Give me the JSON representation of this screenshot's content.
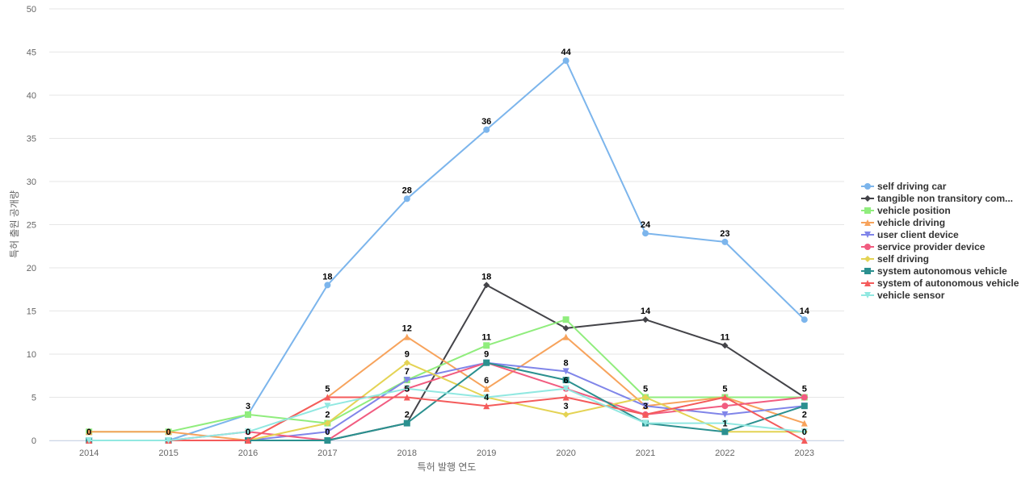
{
  "chart_data": {
    "type": "line",
    "title": "",
    "xlabel": "특허 발행 연도",
    "ylabel": "특허 출원 공개량",
    "ylim": [
      0,
      50
    ],
    "y_ticks": [
      0,
      5,
      10,
      15,
      20,
      25,
      30,
      35,
      40,
      45,
      50
    ],
    "grid": true,
    "legend_position": "right",
    "categories": [
      "2014",
      "2015",
      "2016",
      "2017",
      "2018",
      "2019",
      "2020",
      "2021",
      "2022",
      "2023"
    ],
    "series": [
      {
        "name": "self driving car",
        "color": "#7cb5ec",
        "marker": "circle",
        "values": [
          0,
          0,
          3,
          18,
          28,
          36,
          44,
          24,
          23,
          14
        ],
        "labels": [
          false,
          false,
          false,
          true,
          true,
          true,
          true,
          true,
          true,
          true
        ]
      },
      {
        "name": "tangible non transitory com...",
        "color": "#434348",
        "marker": "diamond",
        "values": [
          0,
          0,
          0,
          0,
          2,
          18,
          13,
          14,
          11,
          5
        ],
        "labels": [
          false,
          false,
          false,
          false,
          false,
          true,
          false,
          true,
          true,
          true
        ]
      },
      {
        "name": "vehicle position",
        "color": "#90ed7d",
        "marker": "square",
        "values": [
          1,
          1,
          3,
          2,
          7,
          11,
          14,
          5,
          5,
          5
        ],
        "labels": [
          false,
          false,
          true,
          false,
          false,
          true,
          false,
          true,
          true,
          false
        ]
      },
      {
        "name": "vehicle driving",
        "color": "#f7a35c",
        "marker": "triangle",
        "values": [
          1,
          1,
          0,
          5,
          12,
          6,
          12,
          4,
          5,
          2
        ],
        "labels": [
          false,
          false,
          false,
          true,
          true,
          true,
          false,
          false,
          false,
          true
        ]
      },
      {
        "name": "user client device",
        "color": "#8085e9",
        "marker": "triangle-down",
        "values": [
          0,
          0,
          0,
          1,
          7,
          9,
          8,
          4,
          3,
          4
        ],
        "labels": [
          false,
          false,
          false,
          false,
          true,
          true,
          true,
          false,
          false,
          false
        ]
      },
      {
        "name": "service provider device",
        "color": "#f15c80",
        "marker": "circle",
        "values": [
          0,
          0,
          1,
          0,
          6,
          9,
          6,
          3,
          4,
          5
        ],
        "labels": [
          false,
          false,
          false,
          false,
          false,
          false,
          true,
          false,
          false,
          false
        ]
      },
      {
        "name": "self driving",
        "color": "#e4d354",
        "marker": "diamond",
        "values": [
          0,
          0,
          0,
          2,
          9,
          5,
          3,
          5,
          1,
          1
        ],
        "labels": [
          true,
          true,
          false,
          true,
          true,
          false,
          true,
          false,
          false,
          false
        ]
      },
      {
        "name": "system autonomous vehicle",
        "color": "#2b908f",
        "marker": "square",
        "values": [
          0,
          0,
          0,
          0,
          2,
          9,
          7,
          2,
          1,
          4
        ],
        "labels": [
          false,
          false,
          false,
          true,
          true,
          false,
          false,
          false,
          true,
          false
        ]
      },
      {
        "name": "system of autonomous vehicle",
        "color": "#f45b5b",
        "marker": "triangle",
        "values": [
          0,
          0,
          0,
          5,
          5,
          4,
          5,
          3,
          5,
          0
        ],
        "labels": [
          false,
          false,
          true,
          false,
          true,
          true,
          false,
          true,
          false,
          true
        ]
      },
      {
        "name": "vehicle sensor",
        "color": "#91e8e1",
        "marker": "triangle-down",
        "values": [
          0,
          0,
          1,
          4,
          6,
          5,
          6,
          2,
          2,
          1
        ],
        "labels": [
          false,
          false,
          false,
          false,
          false,
          false,
          false,
          false,
          false,
          false
        ]
      }
    ]
  }
}
